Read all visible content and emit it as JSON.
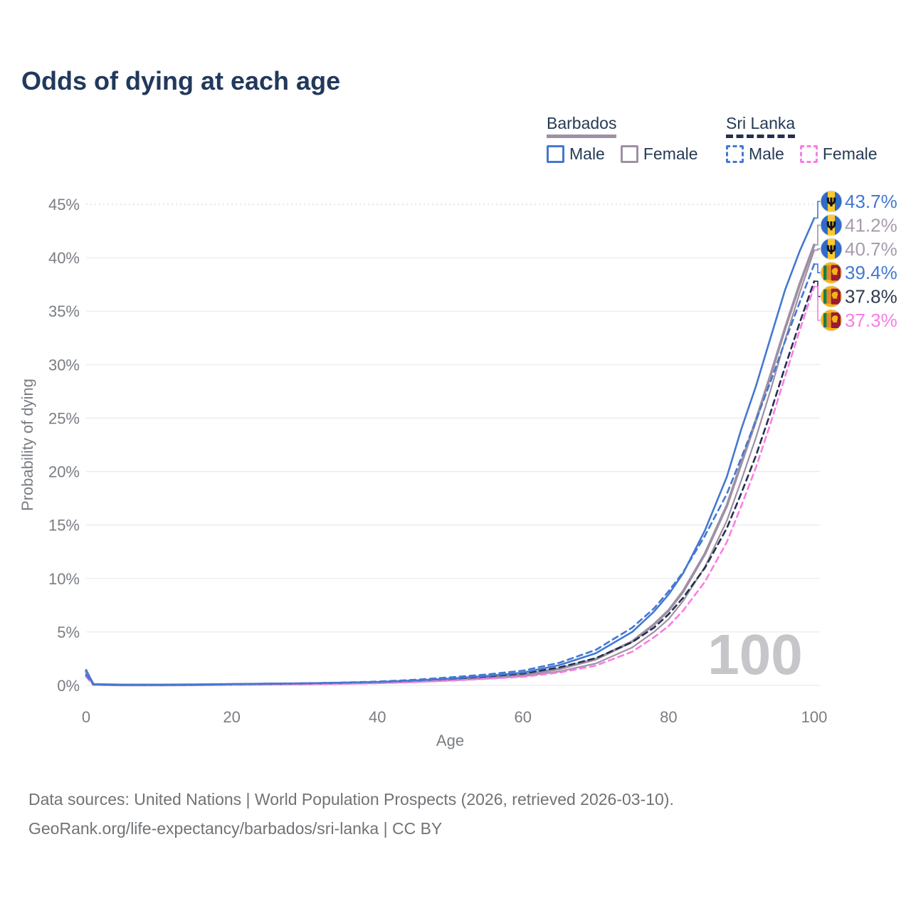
{
  "title": "Odds of dying at each age",
  "legend": {
    "groups": [
      {
        "label": "Barbados",
        "line_style": "solid",
        "line_color": "#9e90a4",
        "items": [
          {
            "label": "Male",
            "color": "#4478d2",
            "dashed": false
          },
          {
            "label": "Female",
            "color": "#9e90a4",
            "dashed": false
          }
        ]
      },
      {
        "label": "Sri Lanka",
        "line_style": "dashed",
        "line_color": "#24304d",
        "items": [
          {
            "label": "Male",
            "color": "#4478d2",
            "dashed": true
          },
          {
            "label": "Female",
            "color": "#fb7ce5",
            "dashed": true
          }
        ]
      }
    ]
  },
  "footer": {
    "line1": "Data sources: United Nations | World Population Prospects (2026, retrieved 2026-03-10).",
    "line2": "GeoRank.org/life-expectancy/barbados/sri-lanka | CC BY"
  },
  "theme": {
    "title_color": "#21395c",
    "tick_color": "#797d82",
    "grid_color": "#ebebee",
    "grid_dotted_color": "#d8d8de",
    "watermark_color": "#c5c5ca",
    "blue": "#4478d2",
    "mauve": "#9e90a4",
    "mauve_text": "#a89bae",
    "navy": "#24304d",
    "navy_text": "#2f3b4e",
    "pink": "#fb7ce5"
  },
  "chart_data": {
    "type": "line",
    "title": "Odds of dying at each age",
    "xlabel": "Age",
    "ylabel": "Probability of dying",
    "xlim": [
      0,
      100
    ],
    "ylim_pct": [
      0,
      45
    ],
    "x_ticks": [
      0,
      20,
      40,
      60,
      80,
      100
    ],
    "y_ticks_pct": [
      0,
      5,
      10,
      15,
      20,
      25,
      30,
      35,
      40,
      45
    ],
    "grid": "on",
    "legend_position": "top-right",
    "watermark": "100",
    "ages": [
      0,
      1,
      5,
      10,
      15,
      20,
      25,
      30,
      35,
      40,
      45,
      50,
      55,
      60,
      65,
      70,
      75,
      78,
      80,
      82,
      85,
      88,
      90,
      92,
      94,
      96,
      98,
      100
    ],
    "series": [
      {
        "name": "Barbados Male",
        "country": "Barbados",
        "sex": "Male",
        "color": "#4478d2",
        "dashed": false,
        "width": 2.6,
        "end_label": "43.7%",
        "end_label_color": "#4478d2",
        "values_pct": [
          1.45,
          0.1,
          0.05,
          0.05,
          0.08,
          0.12,
          0.16,
          0.2,
          0.25,
          0.32,
          0.45,
          0.63,
          0.88,
          1.2,
          1.9,
          3.0,
          5.0,
          6.9,
          8.5,
          10.5,
          14.5,
          19.5,
          24.0,
          28.0,
          32.5,
          37.0,
          40.6,
          43.7
        ]
      },
      {
        "name": "Barbados Both sexes",
        "country": "Barbados",
        "sex": "Both",
        "color": "#9e90a4",
        "dashed": false,
        "width": 3.8,
        "end_label": "41.2%",
        "end_label_color": "#a89bae",
        "values_pct": [
          1.3,
          0.09,
          0.04,
          0.04,
          0.06,
          0.09,
          0.12,
          0.15,
          0.2,
          0.27,
          0.38,
          0.54,
          0.74,
          1.0,
          1.55,
          2.45,
          4.1,
          5.7,
          7.0,
          8.8,
          12.3,
          16.8,
          20.8,
          24.8,
          29.0,
          33.4,
          37.5,
          41.2
        ]
      },
      {
        "name": "Barbados Female",
        "country": "Barbados",
        "sex": "Female",
        "color": "#9e90a4",
        "dashed": false,
        "width": 2.2,
        "end_label": "40.7%",
        "end_label_color": "#a89bae",
        "values_pct": [
          1.15,
          0.08,
          0.04,
          0.03,
          0.05,
          0.06,
          0.09,
          0.11,
          0.15,
          0.22,
          0.31,
          0.45,
          0.62,
          0.85,
          1.3,
          2.05,
          3.55,
          5.0,
          6.2,
          7.9,
          11.1,
          15.4,
          19.2,
          23.2,
          27.6,
          32.3,
          36.7,
          40.7
        ]
      },
      {
        "name": "Sri Lanka Male",
        "country": "Sri Lanka",
        "sex": "Male",
        "color": "#4478d2",
        "dashed": true,
        "width": 2.6,
        "end_label": "39.4%",
        "end_label_color": "#4478d2",
        "values_pct": [
          1.0,
          0.08,
          0.03,
          0.03,
          0.06,
          0.11,
          0.15,
          0.19,
          0.26,
          0.36,
          0.52,
          0.75,
          1.02,
          1.38,
          2.12,
          3.32,
          5.4,
          7.2,
          8.8,
          10.6,
          14.0,
          17.9,
          21.3,
          24.8,
          28.4,
          32.2,
          35.8,
          39.4
        ]
      },
      {
        "name": "Sri Lanka Both sexes",
        "country": "Sri Lanka",
        "sex": "Both",
        "color": "#24304d",
        "dashed": true,
        "width": 2.6,
        "end_label": "37.8%",
        "end_label_color": "#2f3b4e",
        "values_pct": [
          0.9,
          0.07,
          0.03,
          0.03,
          0.05,
          0.08,
          0.11,
          0.14,
          0.19,
          0.28,
          0.41,
          0.6,
          0.82,
          1.1,
          1.68,
          2.55,
          4.05,
          5.4,
          6.65,
          8.2,
          11.0,
          14.7,
          18.0,
          21.5,
          25.5,
          29.8,
          33.9,
          37.8
        ]
      },
      {
        "name": "Sri Lanka Female",
        "country": "Sri Lanka",
        "sex": "Female",
        "color": "#fb7ce5",
        "dashed": true,
        "width": 2.6,
        "end_label": "37.3%",
        "end_label_color": "#fb7ce5",
        "values_pct": [
          0.8,
          0.06,
          0.02,
          0.02,
          0.04,
          0.05,
          0.07,
          0.1,
          0.14,
          0.2,
          0.3,
          0.44,
          0.61,
          0.8,
          1.2,
          1.85,
          3.15,
          4.5,
          5.55,
          7.0,
          9.7,
          13.4,
          16.8,
          20.4,
          24.5,
          28.9,
          33.2,
          37.3
        ]
      }
    ]
  }
}
